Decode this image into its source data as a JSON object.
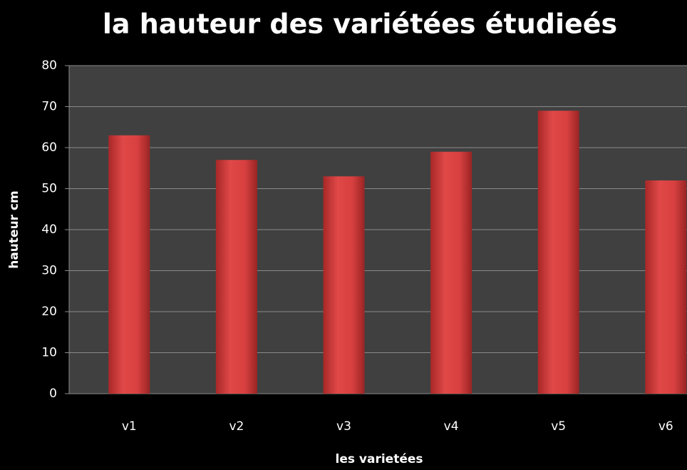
{
  "chart_data": {
    "type": "bar",
    "title": "la hauteur des variétées étudieés",
    "x_label": "les varietées",
    "y_label": "hauteur cm",
    "categories": [
      "v1",
      "v2",
      "v3",
      "v4",
      "v5",
      "v6"
    ],
    "values": [
      63,
      57,
      53,
      59,
      69,
      52
    ],
    "color": "#d94040",
    "ylim": [
      0,
      80
    ],
    "yticks": [
      0,
      10,
      20,
      30,
      40,
      50,
      60,
      70,
      80
    ],
    "grid": true
  }
}
